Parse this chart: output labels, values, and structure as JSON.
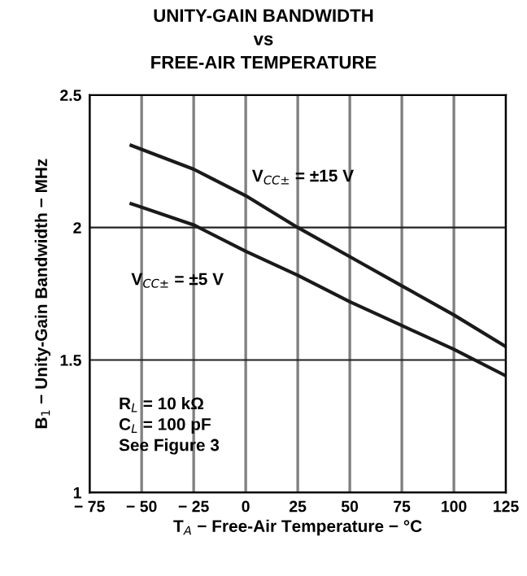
{
  "chart_data": {
    "type": "line",
    "title": "UNITY-GAIN BANDWIDTH\nvs\nFREE-AIR TEMPERATURE",
    "xlabel": "T$_{A}$ − Free-Air Temperature − °C",
    "ylabel": "B$_{1}$ − Unity-Gain Bandwidth − MHz",
    "x": [
      -55,
      -25,
      0,
      25,
      50,
      75,
      100,
      125
    ],
    "series": [
      {
        "name": "V$_{CC±}$ = ±15 V",
        "color": "#1a1a1a",
        "values": [
          2.31,
          2.22,
          2.12,
          2.0,
          1.89,
          1.78,
          1.67,
          1.55
        ]
      },
      {
        "name": "V$_{CC±}$ = ±5 V",
        "color": "#1a1a1a",
        "values": [
          2.09,
          2.01,
          1.91,
          1.82,
          1.72,
          1.63,
          1.54,
          1.44
        ]
      }
    ],
    "xlim": [
      -75,
      125
    ],
    "xticks": [
      {
        "value": -75,
        "label": "− 75"
      },
      {
        "value": -50,
        "label": "− 50"
      },
      {
        "value": -25,
        "label": "− 25"
      },
      0,
      25,
      50,
      75,
      100,
      125
    ],
    "ylim": [
      1,
      2.5
    ],
    "yticks": [
      1,
      1.5,
      2,
      2.5
    ],
    "grid": true,
    "legend": false,
    "line_style": "solid",
    "annotations": [
      "R$_{L}$ = 10 kΩ\nC$_{L}$ = 100 pF\nSee Figure 3"
    ]
  }
}
